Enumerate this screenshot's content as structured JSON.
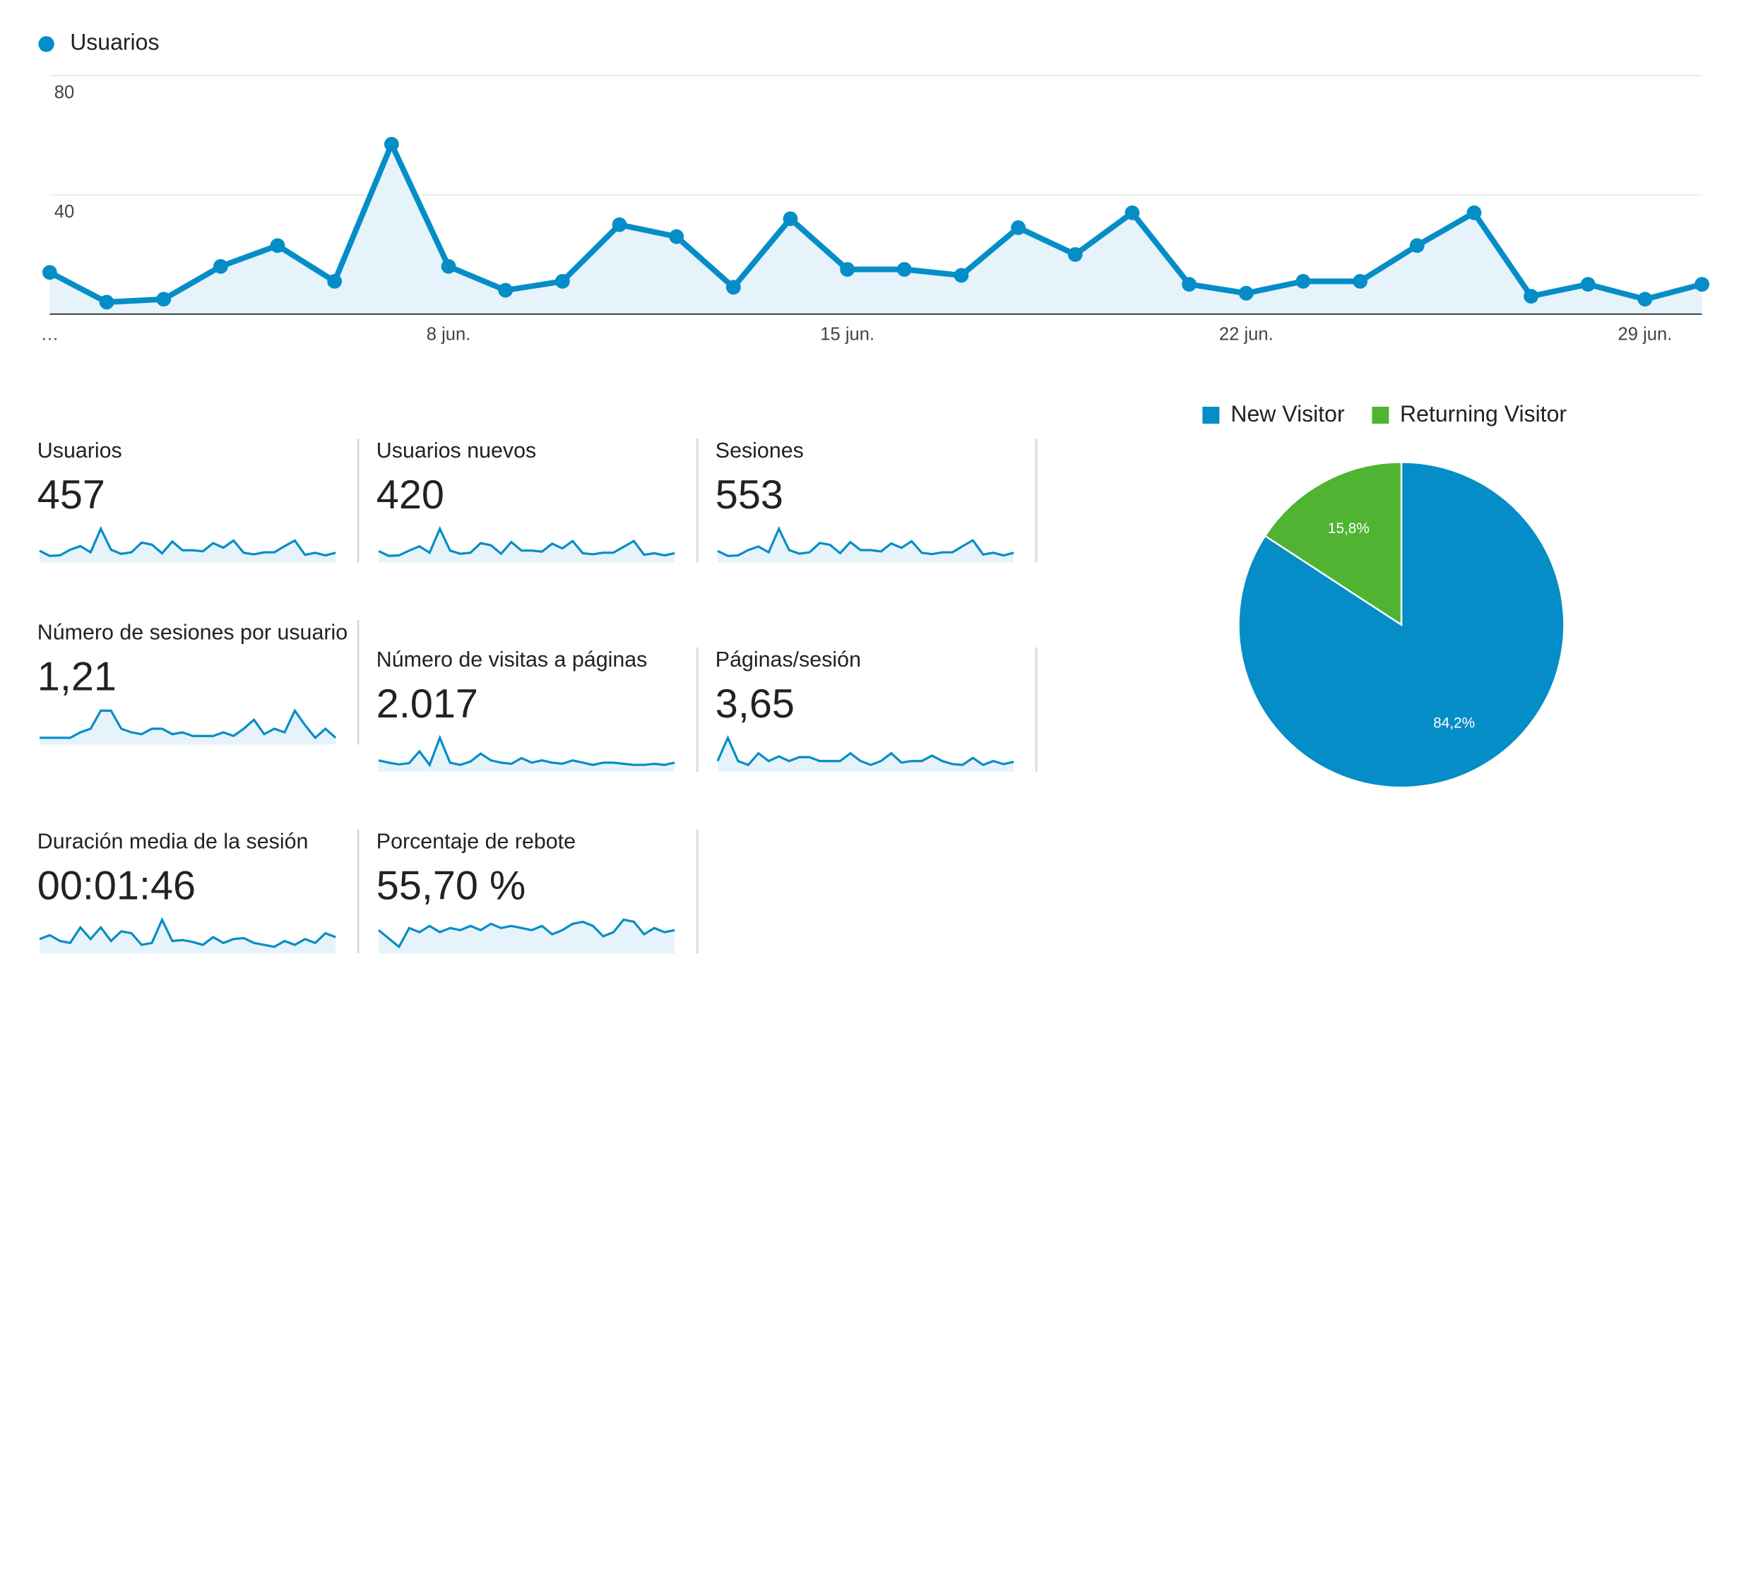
{
  "legend": {
    "series_name": "Usuarios",
    "color": "#058dc7"
  },
  "chart_data": [
    {
      "type": "area",
      "series": [
        {
          "name": "Usuarios",
          "values": [
            14,
            4,
            5,
            16,
            23,
            11,
            57,
            16,
            8,
            11,
            30,
            26,
            9,
            32,
            15,
            15,
            13,
            29,
            20,
            34,
            10,
            7,
            11,
            11,
            23,
            34,
            6,
            10,
            5,
            10
          ]
        }
      ],
      "x_tick_labels": [
        "…",
        "8 jun.",
        "15 jun.",
        "22 jun.",
        "29 jun."
      ],
      "y_ticks": [
        "40",
        "80"
      ],
      "ylim": [
        0,
        80
      ],
      "grid": true,
      "color": "#058dc7",
      "fill": "#e6f3fa"
    },
    {
      "type": "pie",
      "legend": [
        "New Visitor",
        "Returning Visitor"
      ],
      "values": [
        84.2,
        15.8
      ],
      "labels": [
        "84,2%",
        "15,8%"
      ],
      "colors": [
        "#058dc7",
        "#50b432"
      ],
      "legend_position": "top"
    }
  ],
  "metrics": [
    {
      "label": "Usuarios",
      "value": "457",
      "spark": [
        14,
        4,
        5,
        16,
        23,
        11,
        57,
        16,
        8,
        11,
        30,
        26,
        9,
        32,
        15,
        15,
        13,
        29,
        20,
        34,
        10,
        7,
        11,
        11,
        23,
        34,
        6,
        10,
        5,
        10
      ]
    },
    {
      "label": "Usuarios nuevos",
      "value": "420",
      "spark": [
        13,
        4,
        5,
        14,
        22,
        10,
        55,
        14,
        8,
        10,
        28,
        24,
        8,
        30,
        14,
        14,
        12,
        27,
        18,
        32,
        9,
        7,
        10,
        10,
        21,
        32,
        6,
        9,
        5,
        9
      ]
    },
    {
      "label": "Sesiones",
      "value": "553",
      "spark": [
        16,
        5,
        6,
        18,
        26,
        13,
        66,
        18,
        10,
        13,
        34,
        30,
        11,
        36,
        18,
        18,
        15,
        33,
        23,
        38,
        12,
        9,
        13,
        13,
        27,
        40,
        8,
        12,
        6,
        12
      ]
    },
    {
      "label": "Número de sesiones por usuario",
      "value": "1,21",
      "spark": [
        1.15,
        1.15,
        1.15,
        1.15,
        1.18,
        1.2,
        1.3,
        1.3,
        1.2,
        1.18,
        1.17,
        1.2,
        1.2,
        1.17,
        1.18,
        1.16,
        1.16,
        1.16,
        1.18,
        1.16,
        1.2,
        1.25,
        1.17,
        1.2,
        1.18,
        1.3,
        1.22,
        1.15,
        1.2,
        1.15
      ]
    },
    {
      "label": "Número de visitas a páginas",
      "value": "2.017",
      "spark": [
        40,
        30,
        22,
        28,
        80,
        20,
        140,
        30,
        20,
        35,
        70,
        40,
        30,
        25,
        50,
        30,
        40,
        30,
        25,
        40,
        30,
        20,
        30,
        30,
        25,
        20,
        20,
        25,
        20,
        30
      ]
    },
    {
      "label": "Páginas/sesión",
      "value": "3,65",
      "spark": [
        4,
        7,
        4,
        3.5,
        5,
        4,
        4.6,
        4,
        4.5,
        4.5,
        4,
        4,
        4,
        5,
        4,
        3.5,
        4,
        5,
        3.8,
        4,
        4,
        4.7,
        4,
        3.6,
        3.5,
        4.4,
        3.5,
        4,
        3.6,
        3.9
      ]
    },
    {
      "label": "Duración media de la sesión",
      "value": "00:01:46",
      "spark": [
        60,
        80,
        50,
        40,
        120,
        60,
        120,
        50,
        100,
        90,
        30,
        40,
        160,
        50,
        55,
        45,
        30,
        70,
        40,
        60,
        65,
        40,
        30,
        20,
        50,
        30,
        60,
        40,
        90,
        70
      ]
    },
    {
      "label": "Porcentaje de rebote",
      "value": "55,70 %",
      "spark": [
        50,
        30,
        10,
        55,
        45,
        60,
        45,
        55,
        50,
        60,
        50,
        65,
        55,
        60,
        55,
        50,
        60,
        40,
        50,
        65,
        70,
        60,
        35,
        45,
        75,
        70,
        40,
        55,
        45,
        50
      ]
    }
  ]
}
